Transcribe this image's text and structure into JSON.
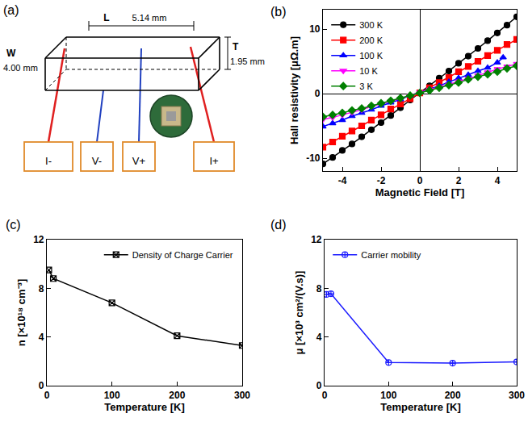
{
  "diagram": {
    "panel": "(a)",
    "length": {
      "symbol": "L",
      "value": "5.14 mm"
    },
    "width": {
      "symbol": "W",
      "value": "4.00 mm"
    },
    "thickness": {
      "symbol": "T",
      "value": "1.95 mm"
    },
    "terminals": [
      "I-",
      "V-",
      "V+",
      "I+"
    ]
  },
  "chart_data": [
    {
      "panel": "(b)",
      "type": "line",
      "x_label": "Magnetic Field [T]",
      "y_label": "Hall resistivity [μΩ.m]",
      "xlim": [
        -5,
        5
      ],
      "xticks": [
        -4,
        -2,
        0,
        2,
        4
      ],
      "ylim": [
        -12,
        13
      ],
      "yticks": [
        -10,
        0,
        10
      ],
      "grid": false,
      "legend": "upper left",
      "series": [
        {
          "name": "300 K",
          "color": "#000000",
          "marker": "circle",
          "line_style": "solid",
          "x": [
            -5,
            -4.5,
            -4,
            -3.5,
            -3,
            -2.5,
            -2,
            -1.5,
            -1,
            -0.5,
            0,
            0.5,
            1,
            1.5,
            2,
            2.5,
            3,
            3.5,
            4,
            4.5,
            5
          ],
          "values": [
            -10.9,
            -9.9,
            -8.8,
            -7.8,
            -6.7,
            -5.6,
            -4.5,
            -3.4,
            -2.2,
            -1.0,
            0.1,
            1.2,
            2.4,
            3.5,
            4.7,
            5.8,
            7.0,
            8.2,
            9.4,
            10.6,
            11.9
          ]
        },
        {
          "name": "200 K",
          "color": "#ff0000",
          "marker": "square",
          "line_style": "solid",
          "x": [
            -5,
            -4.5,
            -4,
            -3.5,
            -3,
            -2.5,
            -2,
            -1.5,
            -1,
            -0.5,
            0,
            0.5,
            1,
            1.5,
            2,
            2.5,
            3,
            3.5,
            4,
            4.5,
            5
          ],
          "values": [
            -8.3,
            -7.5,
            -6.6,
            -5.8,
            -5.0,
            -4.1,
            -3.3,
            -2.4,
            -1.6,
            -0.8,
            0.1,
            0.9,
            1.7,
            2.5,
            3.4,
            4.2,
            5.0,
            5.9,
            6.7,
            7.6,
            8.4
          ]
        },
        {
          "name": "100 K",
          "color": "#0000ff",
          "marker": "triangle-up",
          "line_style": "solid",
          "x": [
            -5,
            -4.5,
            -4,
            -3.5,
            -3,
            -2.5,
            -2,
            -1.5,
            -1,
            -0.5,
            0,
            0.5,
            1,
            1.5,
            2,
            2.5,
            3,
            3.5,
            4,
            4.3
          ],
          "values": [
            -5.1,
            -4.6,
            -4.1,
            -3.5,
            -3.0,
            -2.5,
            -1.9,
            -1.4,
            -0.9,
            -0.3,
            0.2,
            0.7,
            1.2,
            1.8,
            2.4,
            2.9,
            3.5,
            4.0,
            4.8,
            5.6
          ]
        },
        {
          "name": "10 K",
          "color": "#ff00ff",
          "marker": "triangle-down",
          "line_style": "solid",
          "x": [
            -5,
            -4.5,
            -4,
            -3.5,
            -3,
            -2.5,
            -2,
            -1.5,
            -1,
            -0.5,
            0,
            0.5,
            1,
            1.5,
            2,
            2.5,
            3,
            3.5,
            4,
            4.5,
            5
          ],
          "values": [
            -4.0,
            -3.7,
            -3.3,
            -2.9,
            -2.5,
            -2.0,
            -1.6,
            -1.2,
            -0.8,
            -0.3,
            0.2,
            0.6,
            1.0,
            1.4,
            1.9,
            2.3,
            2.8,
            3.3,
            3.8,
            4.2,
            4.6
          ]
        },
        {
          "name": "3 K",
          "color": "#008000",
          "marker": "diamond",
          "line_style": "solid",
          "x": [
            -5,
            -4.5,
            -4,
            -3.5,
            -3,
            -2.5,
            -2,
            -1.5,
            -1,
            -0.5,
            0,
            0.5,
            1,
            1.5,
            2,
            2.5,
            3,
            3.5,
            4,
            4.5,
            5
          ],
          "values": [
            -3.6,
            -3.3,
            -3.0,
            -2.6,
            -2.3,
            -1.9,
            -1.5,
            -1.1,
            -0.7,
            -0.3,
            0.1,
            0.5,
            0.9,
            1.3,
            1.7,
            2.2,
            2.6,
            3.0,
            3.4,
            3.9,
            4.3
          ]
        }
      ]
    },
    {
      "panel": "(c)",
      "type": "line",
      "x_label": "Temperature [K]",
      "y_label": "n [×10¹⁸ cm⁻³]",
      "xlim": [
        0,
        300
      ],
      "xticks": [
        0,
        100,
        200,
        300
      ],
      "ylim": [
        0,
        12
      ],
      "yticks": [
        0,
        4,
        8,
        12
      ],
      "grid": false,
      "legend": "upper right",
      "series": [
        {
          "name": "Density of Charge Carrier",
          "color": "#000000",
          "marker": "square-x-open",
          "line_style": "solid",
          "x": [
            3,
            10,
            100,
            200,
            300
          ],
          "values": [
            9.5,
            8.8,
            6.8,
            4.1,
            3.3
          ]
        }
      ]
    },
    {
      "panel": "(d)",
      "type": "line",
      "x_label": "Temperature [K]",
      "y_label": "μ [×10³ cm²/(V.s)]",
      "xlim": [
        0,
        300
      ],
      "xticks": [
        0,
        100,
        200,
        300
      ],
      "ylim": [
        0,
        12
      ],
      "yticks": [
        0,
        4,
        8,
        12
      ],
      "grid": false,
      "legend": "upper left",
      "series": [
        {
          "name": "Carrier mobility",
          "color": "#1a1aff",
          "marker": "circle-cross-open",
          "line_style": "solid",
          "x": [
            3,
            10,
            100,
            200,
            300
          ],
          "values": [
            7.5,
            7.55,
            1.9,
            1.85,
            1.95
          ]
        }
      ]
    }
  ]
}
